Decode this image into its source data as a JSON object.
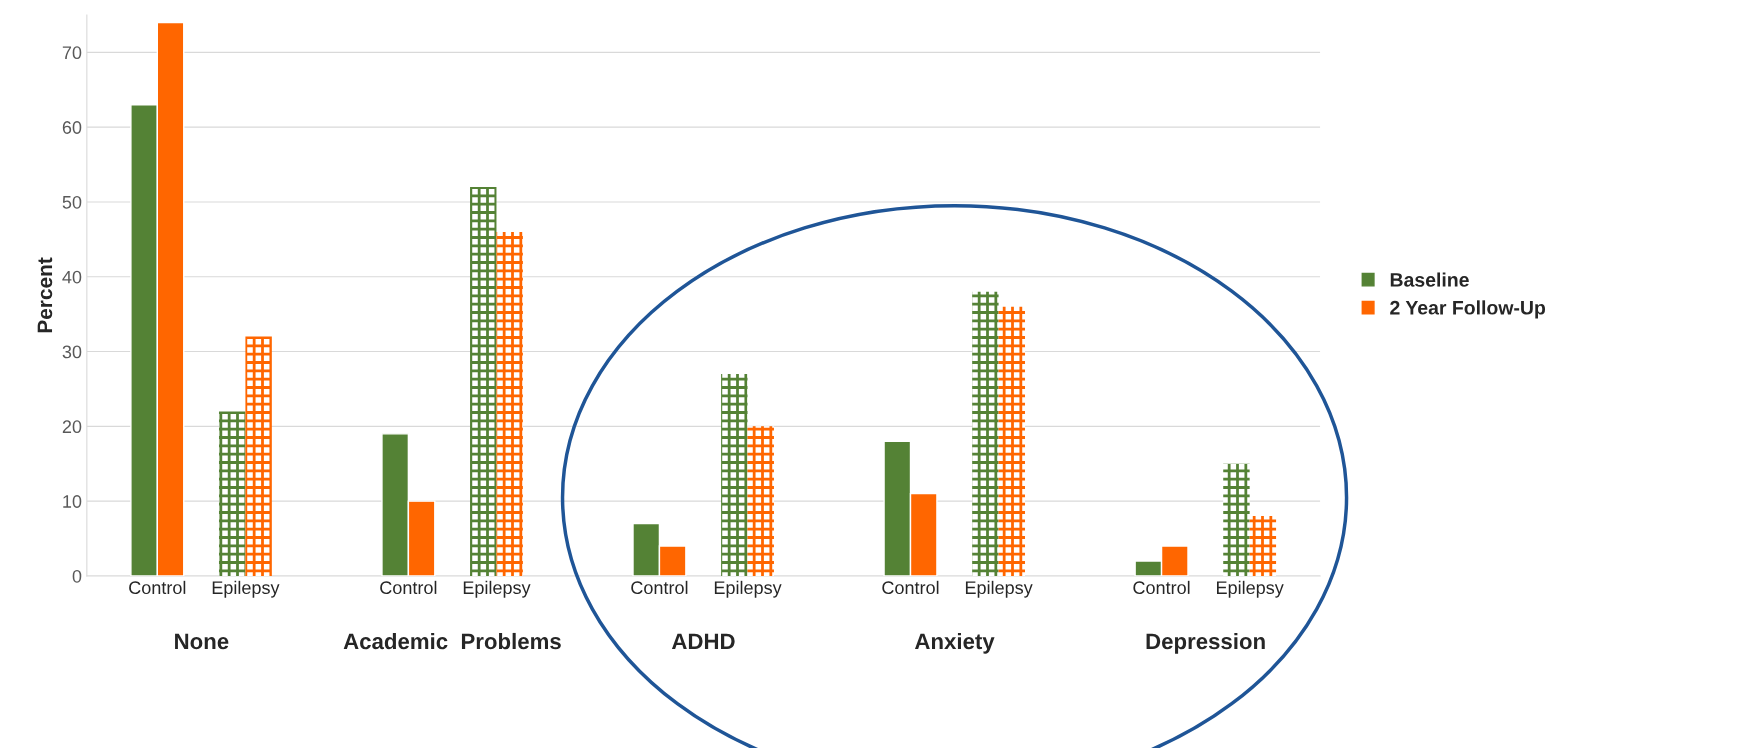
{
  "chart_data": {
    "type": "bar",
    "ylabel": "Percent",
    "categories": [
      "Control",
      "Epilepsy",
      "Control",
      "Epilepsy",
      "Control",
      "Epilepsy",
      "Control",
      "Epilepsy",
      "Control",
      "Epilepsy"
    ],
    "series": [
      {
        "name": "Baseline",
        "color": "#548235",
        "values": [
          63,
          22,
          19,
          52,
          7,
          27,
          18,
          38,
          2,
          15
        ]
      },
      {
        "name": "2 Year Follow-Up",
        "color": "#ff6600",
        "values": [
          74,
          32,
          10,
          46,
          4,
          20,
          11,
          36,
          4,
          8
        ]
      }
    ],
    "annotations": [
      "None",
      "Academic  Problems",
      "ADHD",
      "Anxiety",
      "Depression"
    ],
    "ylim": [
      0,
      75
    ],
    "yticks": [
      0,
      10,
      20,
      30,
      40,
      50,
      60,
      70
    ],
    "grid": "y",
    "legend": "right"
  }
}
